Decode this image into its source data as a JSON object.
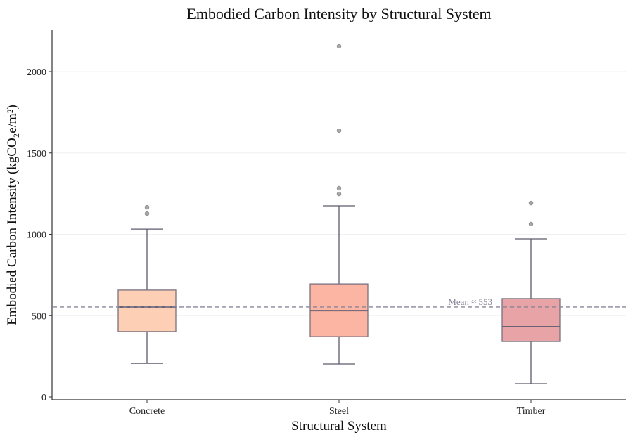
{
  "chart_data": {
    "type": "box",
    "title": "Embodied Carbon Intensity by Structural System",
    "xlabel": "Structural System",
    "ylabel": "Embodied Carbon Intensity (kgCO₂e/m²)",
    "ylim": [
      -20,
      2260
    ],
    "yticks": [
      0,
      500,
      1000,
      1500,
      2000
    ],
    "grid": "horizontal",
    "categories": [
      "Concrete",
      "Steel",
      "Timber"
    ],
    "boxes": [
      {
        "category": "Concrete",
        "whisker_low": 207,
        "q1": 402,
        "median": 553,
        "q3": 657,
        "whisker_high": 1032,
        "outliers": [
          1127,
          1166
        ],
        "color": "#fdd0b6"
      },
      {
        "category": "Steel",
        "whisker_low": 203,
        "q1": 371,
        "median": 531,
        "q3": 695,
        "whisker_high": 1175,
        "outliers": [
          1248,
          1283,
          1637,
          2156
        ],
        "color": "#fcb4a3"
      },
      {
        "category": "Timber",
        "whisker_low": 82,
        "q1": 341,
        "median": 432,
        "q3": 605,
        "whisker_high": 972,
        "outliers": [
          1063,
          1192
        ],
        "color": "#e8a3a6"
      }
    ],
    "reference_line": {
      "value": 553,
      "label": "Mean ≈ 553",
      "style": "dashed"
    }
  }
}
